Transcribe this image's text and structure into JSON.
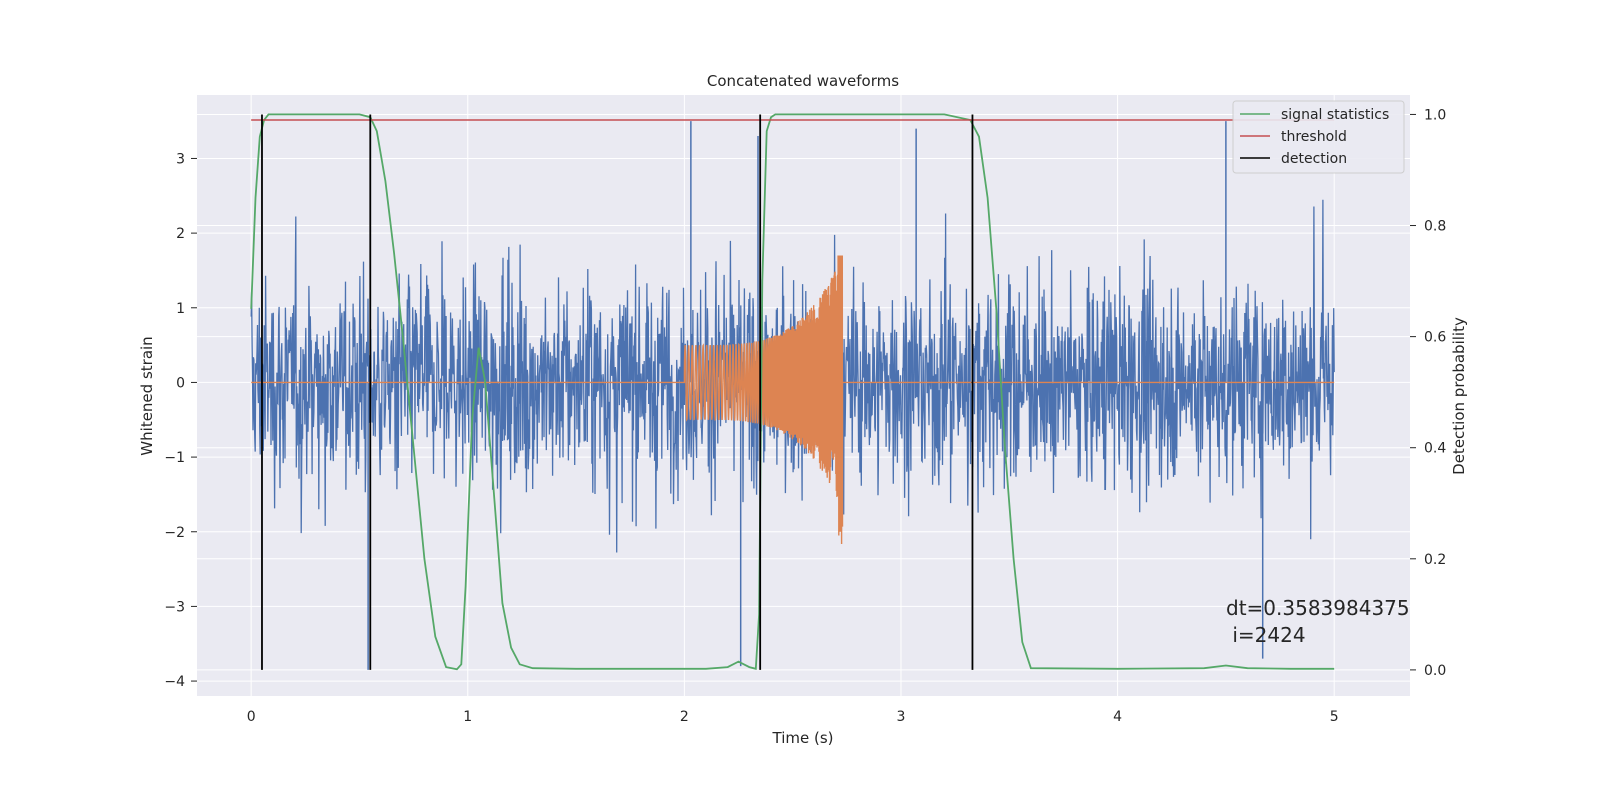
{
  "chart_data": {
    "type": "line",
    "title": "Concatenated waveforms",
    "xlabel": "Time (s)",
    "ylabel": "Whitened strain",
    "y2label": "Detection probability",
    "xlim": [
      -0.25,
      5.35
    ],
    "ylim": [
      -4.2,
      3.85
    ],
    "y2lim": [
      -0.047,
      1.035
    ],
    "x_ticks": [
      0,
      1,
      2,
      3,
      4,
      5
    ],
    "y_ticks": [
      -4,
      -3,
      -2,
      -1,
      0,
      1,
      2,
      3
    ],
    "y2_ticks": [
      0.0,
      0.2,
      0.4,
      0.6,
      0.8,
      1.0
    ],
    "y2_tick_labels": [
      "0.0",
      "0.2",
      "0.4",
      "0.6",
      "0.8",
      "1.0"
    ],
    "grid": true,
    "legend_position": "top-right",
    "legend": [
      "signal statistics",
      "threshold",
      "detection"
    ],
    "colors": {
      "noise": "#4c72b0",
      "injection": "#dd8452",
      "signal_statistics": "#55a868",
      "threshold": "#c44e52",
      "detection": "#000000",
      "axes_bg": "#eaeaf2",
      "grid": "#ffffff"
    },
    "series": [
      {
        "name": "signal statistics",
        "axis": "right",
        "x": [
          0.0,
          0.02,
          0.04,
          0.06,
          0.08,
          0.1,
          0.15,
          0.3,
          0.45,
          0.5,
          0.55,
          0.58,
          0.62,
          0.66,
          0.7,
          0.75,
          0.8,
          0.85,
          0.9,
          0.95,
          0.97,
          0.99,
          1.02,
          1.05,
          1.08,
          1.12,
          1.16,
          1.2,
          1.24,
          1.3,
          1.5,
          2.0,
          2.1,
          2.2,
          2.25,
          2.3,
          2.33,
          2.345,
          2.36,
          2.38,
          2.4,
          2.42,
          2.45,
          2.5,
          2.8,
          3.2,
          3.32,
          3.36,
          3.4,
          3.44,
          3.48,
          3.52,
          3.56,
          3.6,
          4.0,
          4.4,
          4.5,
          4.6,
          4.8,
          5.0
        ],
        "y": [
          0.65,
          0.85,
          0.96,
          0.99,
          1.0,
          1.0,
          1.0,
          1.0,
          1.0,
          1.0,
          0.995,
          0.97,
          0.88,
          0.75,
          0.6,
          0.4,
          0.2,
          0.06,
          0.005,
          0.001,
          0.01,
          0.15,
          0.45,
          0.58,
          0.52,
          0.32,
          0.12,
          0.04,
          0.01,
          0.003,
          0.002,
          0.002,
          0.002,
          0.005,
          0.015,
          0.005,
          0.002,
          0.1,
          0.7,
          0.97,
          0.995,
          1.0,
          1.0,
          1.0,
          1.0,
          1.0,
          0.99,
          0.96,
          0.85,
          0.65,
          0.4,
          0.2,
          0.05,
          0.003,
          0.002,
          0.003,
          0.008,
          0.003,
          0.002,
          0.002
        ]
      },
      {
        "name": "threshold",
        "axis": "right",
        "x": [
          0.0,
          5.0
        ],
        "y": [
          0.99,
          0.99
        ]
      },
      {
        "name": "detection",
        "axis": "right",
        "type": "vlines",
        "x": [
          0.05,
          0.55,
          2.35,
          3.33
        ],
        "y_range": [
          0.0,
          1.0
        ]
      }
    ],
    "background_signals": [
      {
        "name": "whitened noise",
        "axis": "left",
        "x_range": [
          0.0,
          5.0
        ],
        "y_range": [
          -3.85,
          3.5
        ],
        "typical_amplitude": 1.5,
        "spikes": [
          [
            2.03,
            3.5
          ],
          [
            2.26,
            -3.8
          ],
          [
            2.34,
            3.3
          ],
          [
            3.07,
            3.4
          ],
          [
            4.5,
            3.5
          ],
          [
            4.67,
            -3.7
          ],
          [
            0.54,
            -3.85
          ]
        ]
      },
      {
        "name": "injected chirp",
        "axis": "left",
        "x_range": [
          2.0,
          2.73
        ],
        "amplitude_start": 0.5,
        "amplitude_end": 1.7,
        "y_min": -2.4
      }
    ],
    "annotations": [
      "dt=0.3583984375\n i=2424"
    ]
  }
}
